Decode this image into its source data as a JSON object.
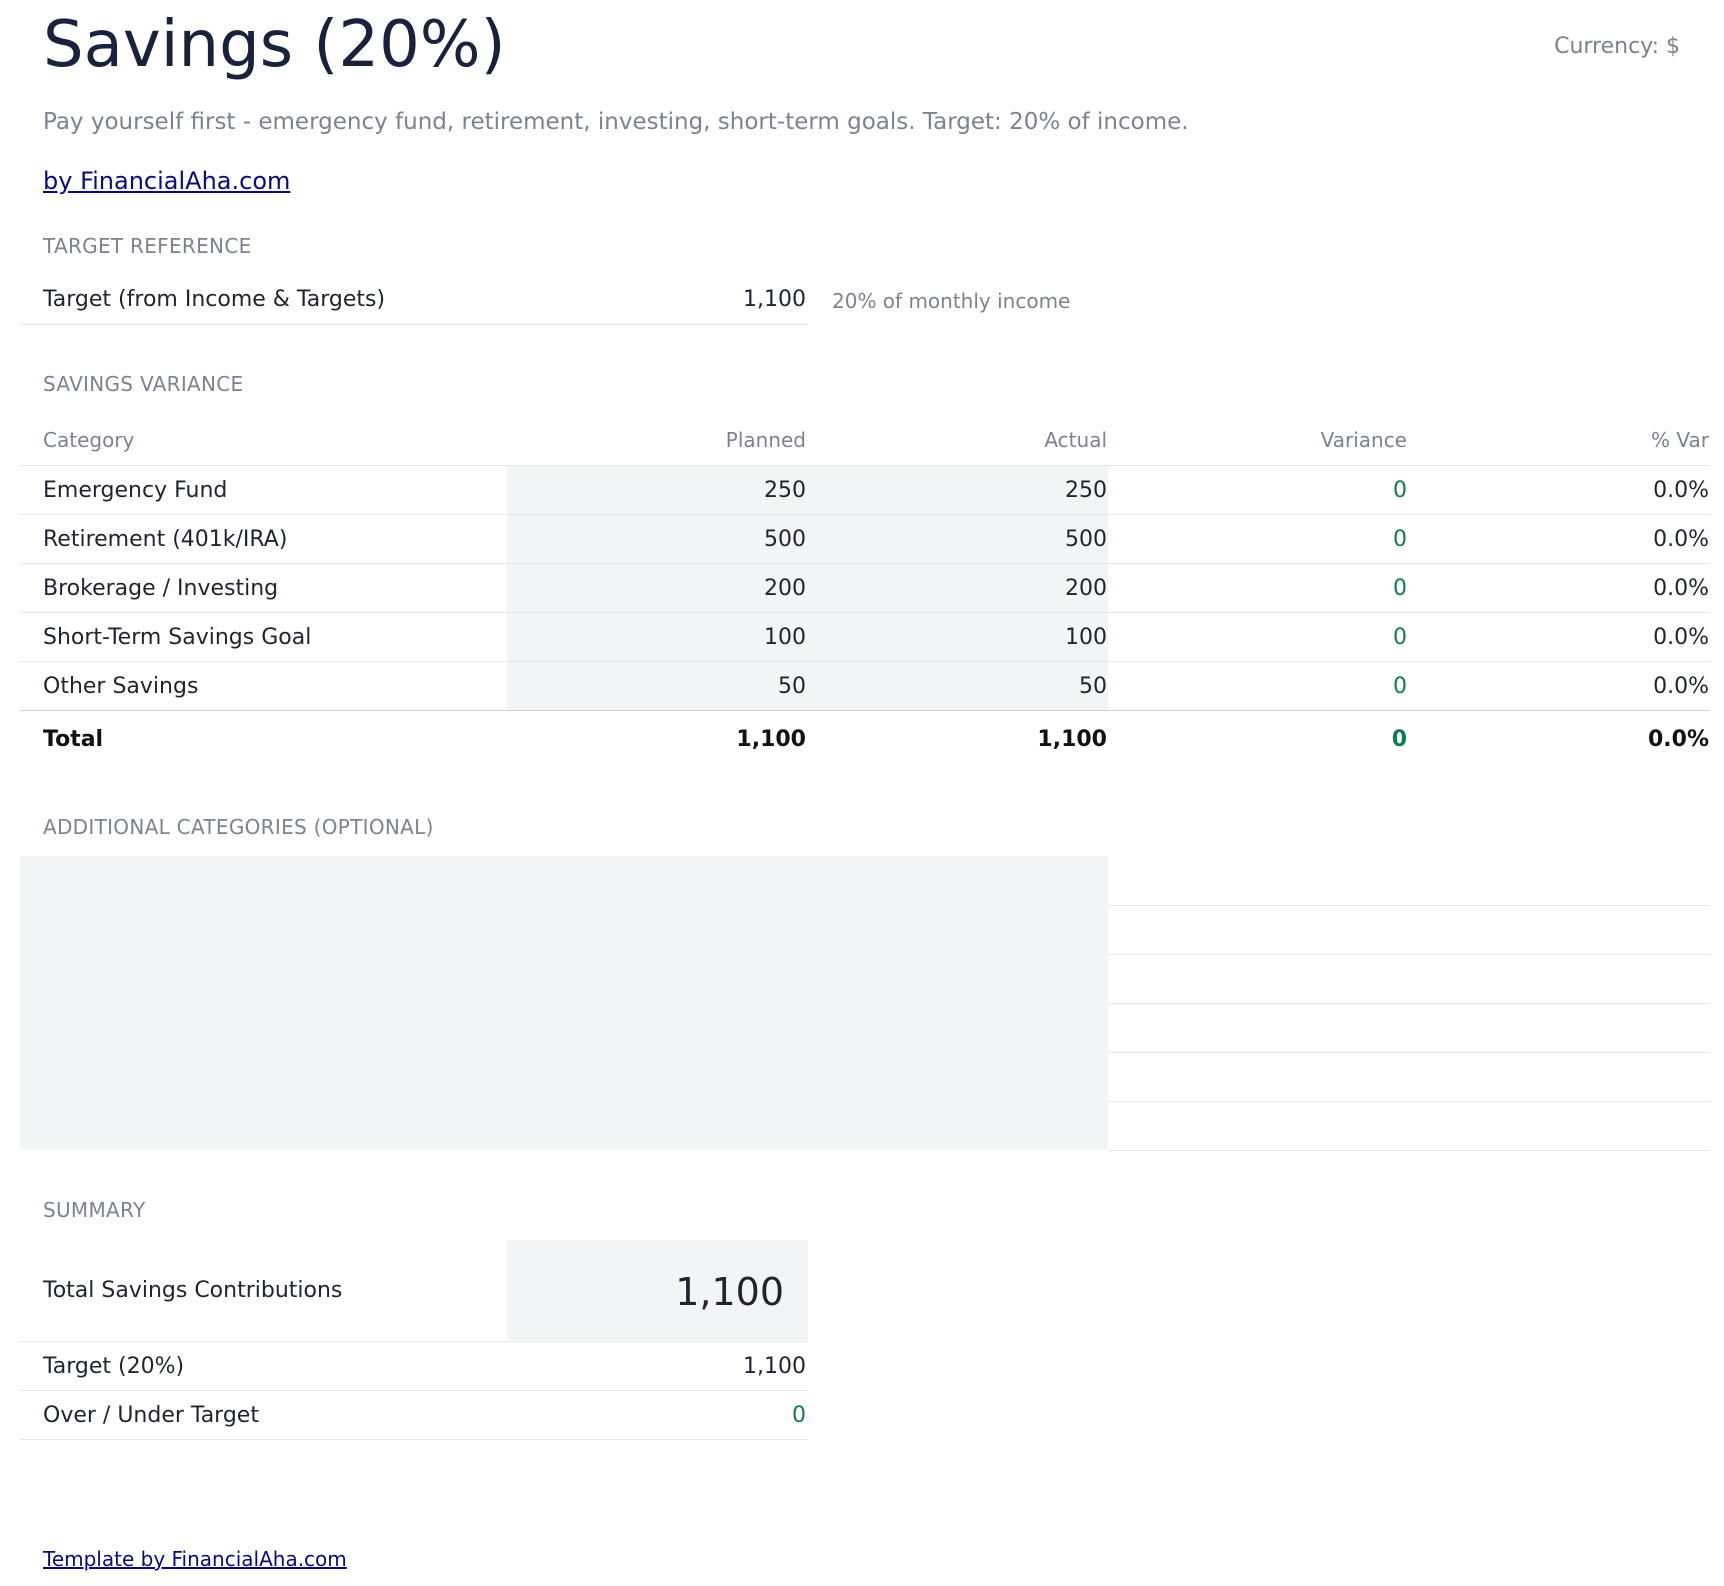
{
  "header": {
    "title": "Savings (20%)",
    "currency": "Currency: $",
    "subtitle": "Pay yourself first - emergency fund, retirement, investing, short-term goals. Target: 20% of income.",
    "byline": "by FinancialAha.com"
  },
  "target_reference": {
    "heading": "TARGET REFERENCE",
    "label": "Target (from Income & Targets)",
    "value": "1,100",
    "note": "20% of monthly income"
  },
  "variance": {
    "heading": "SAVINGS VARIANCE",
    "columns": [
      "Category",
      "Planned",
      "Actual",
      "Variance",
      "% Var"
    ],
    "rows": [
      {
        "category": "Emergency Fund",
        "planned": "250",
        "actual": "250",
        "variance": "0",
        "pct": "0.0%"
      },
      {
        "category": "Retirement (401k/IRA)",
        "planned": "500",
        "actual": "500",
        "variance": "0",
        "pct": "0.0%"
      },
      {
        "category": "Brokerage / Investing",
        "planned": "200",
        "actual": "200",
        "variance": "0",
        "pct": "0.0%"
      },
      {
        "category": "Short-Term Savings Goal",
        "planned": "100",
        "actual": "100",
        "variance": "0",
        "pct": "0.0%"
      },
      {
        "category": "Other Savings",
        "planned": "50",
        "actual": "50",
        "variance": "0",
        "pct": "0.0%"
      }
    ],
    "total": {
      "label": "Total",
      "planned": "1,100",
      "actual": "1,100",
      "variance": "0",
      "pct": "0.0%"
    }
  },
  "additional": {
    "heading": "ADDITIONAL CATEGORIES (OPTIONAL)"
  },
  "summary": {
    "heading": "SUMMARY",
    "total_label": "Total Savings Contributions",
    "total_value": "1,100",
    "target_label": "Target (20%)",
    "target_value": "1,100",
    "over_under_label": "Over / Under Target",
    "over_under_value": "0"
  },
  "footer": {
    "link": "Template by FinancialAha.com"
  },
  "colors": {
    "positive": "#127a52",
    "link": "#0a0a80",
    "input_fill": "#f3f4f6"
  }
}
